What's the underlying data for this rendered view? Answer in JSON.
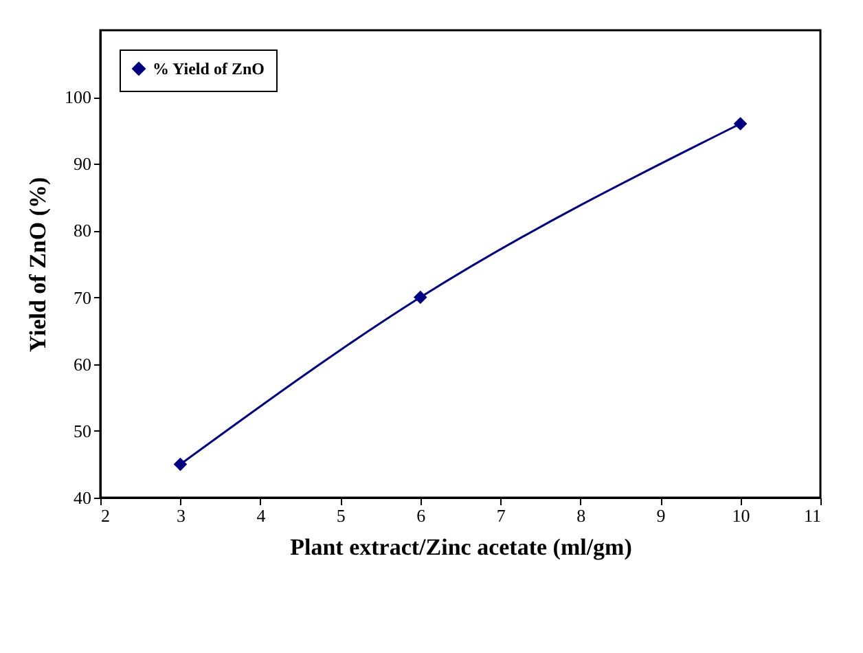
{
  "chart_data": {
    "type": "line",
    "xlabel": "Plant extract/Zinc acetate (ml/gm)",
    "ylabel": "Yield of ZnO (%)",
    "x": [
      3,
      6,
      10
    ],
    "series": [
      {
        "name": "% Yield of ZnO",
        "color": "#000080",
        "values": [
          45,
          70,
          96
        ]
      }
    ],
    "xlim": [
      2,
      11
    ],
    "xticks": [
      2,
      3,
      4,
      5,
      6,
      7,
      8,
      9,
      10,
      11
    ],
    "ylim": [
      40,
      110
    ],
    "yticks": [
      40,
      50,
      60,
      70,
      80,
      90,
      100
    ],
    "marker": "diamond",
    "line_style": "solid",
    "legend": "top left",
    "grid": false
  }
}
